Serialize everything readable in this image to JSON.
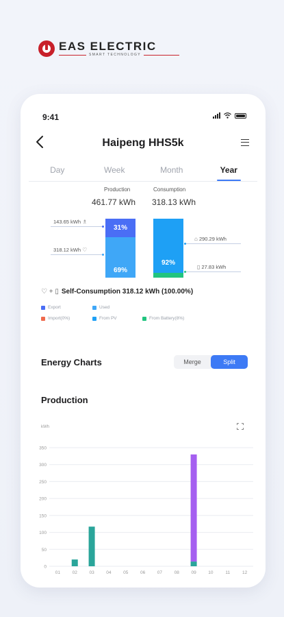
{
  "brand": {
    "name": "EAS ELECTRIC",
    "tagline": "SMART TECHNOLOGY"
  },
  "status_bar": {
    "time": "9:41",
    "icons": [
      "signal-icon",
      "wifi-icon",
      "battery-icon"
    ]
  },
  "nav": {
    "title": "Haipeng HHS5k",
    "back_icon": "chevron-left-icon",
    "menu_icon": "menu-icon"
  },
  "tabs": [
    "Day",
    "Week",
    "Month",
    "Year"
  ],
  "active_tab": "Year",
  "flow": {
    "production_label": "Production",
    "production_value": "461.77 kWh",
    "consumption_label": "Consumption",
    "consumption_value": "318.13 kWh",
    "export_value": "143.65 kWh",
    "used_value": "318.12 kWh",
    "export_pct": "31%",
    "used_pct": "69%",
    "from_pv_pct": "92%",
    "grid_value": "290.29 kWh",
    "battery_value": "27.83 kWh",
    "export_fraction": 0.31,
    "used_fraction": 0.69,
    "pv_fraction": 0.92,
    "self_consumption": "Self-Consumption 318.12 kWh (100.00%)",
    "colors": {
      "export": "#4a6ef5",
      "used": "#3fa7f7",
      "import": "#ef6a4d",
      "from_pv": "#1ea0f5",
      "from_battery": "#21c47f"
    }
  },
  "legend": [
    {
      "label": "Export",
      "color": "#4a6ef5"
    },
    {
      "label": "Used",
      "color": "#3fa7f7"
    },
    {
      "label": "Import(0%)",
      "color": "#ef6a4d"
    },
    {
      "label": "From PV",
      "color": "#1ea0f5"
    },
    {
      "label": "From Battery(8%)",
      "color": "#21c47f"
    }
  ],
  "charts": {
    "title": "Energy Charts",
    "merge_label": "Merge",
    "split_label": "Split",
    "active_mode": "Split",
    "section_title": "Production",
    "unit": "kWh",
    "expand_icon": "expand-icon"
  },
  "chart_data": {
    "type": "bar",
    "categories": [
      "01",
      "02",
      "03",
      "04",
      "05",
      "06",
      "07",
      "08",
      "09",
      "10",
      "11",
      "12"
    ],
    "series": [
      {
        "name": "",
        "color": "#2aa59a",
        "values": [
          0,
          20,
          117,
          0,
          0,
          0,
          0,
          0,
          14,
          0,
          0,
          0
        ]
      },
      {
        "name": "",
        "color": "#a55ff0",
        "values": [
          0,
          0,
          0,
          0,
          0,
          0,
          0,
          0,
          316,
          0,
          0,
          0
        ]
      }
    ],
    "stacked": true,
    "ylabel": "kWh",
    "ylim": [
      0,
      350
    ],
    "yticks": [
      0,
      50,
      100,
      150,
      200,
      250,
      300,
      350
    ],
    "grid": true
  }
}
